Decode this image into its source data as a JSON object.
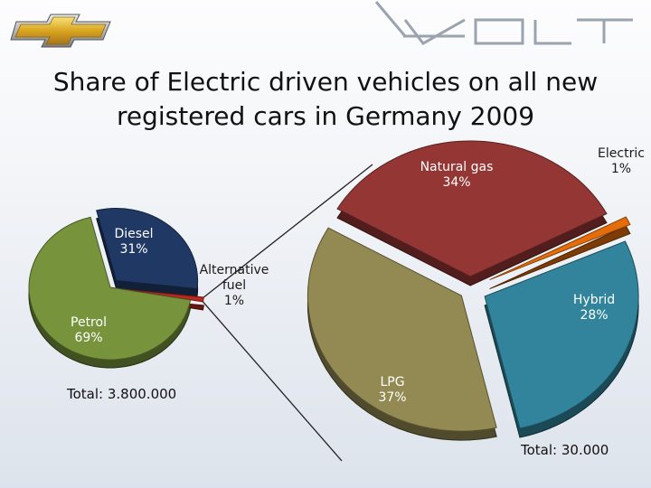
{
  "slide": {
    "title": "Share of Electric driven vehicles on all new registered cars in Germany 2009",
    "brand_text": "VOLT",
    "colors": {
      "petrol": "#77933c",
      "diesel": "#1f3864",
      "alternative": "#c0271f",
      "natural_gas": "#943634",
      "lpg": "#938953",
      "hybrid": "#31849b",
      "electric": "#e46c0a"
    }
  },
  "chart_data": [
    {
      "type": "pie",
      "slices": [
        {
          "name": "Petrol",
          "value": 69,
          "label": "Petrol\n69%"
        },
        {
          "name": "Diesel",
          "value": 31,
          "label": "Diesel\n31%"
        },
        {
          "name": "Alternative fuel",
          "value": 1,
          "label": "Alternative\nfuel\n1%"
        }
      ],
      "total": "Total: 3.800.000"
    },
    {
      "type": "pie",
      "slices": [
        {
          "name": "Natural gas",
          "value": 34,
          "label": "Natural gas\n34%"
        },
        {
          "name": "Electric",
          "value": 1,
          "label": "Electric\n1%"
        },
        {
          "name": "Hybrid",
          "value": 28,
          "label": "Hybrid\n28%"
        },
        {
          "name": "LPG",
          "value": 37,
          "label": "LPG\n37%"
        }
      ],
      "total": "Total: 30.000"
    }
  ]
}
